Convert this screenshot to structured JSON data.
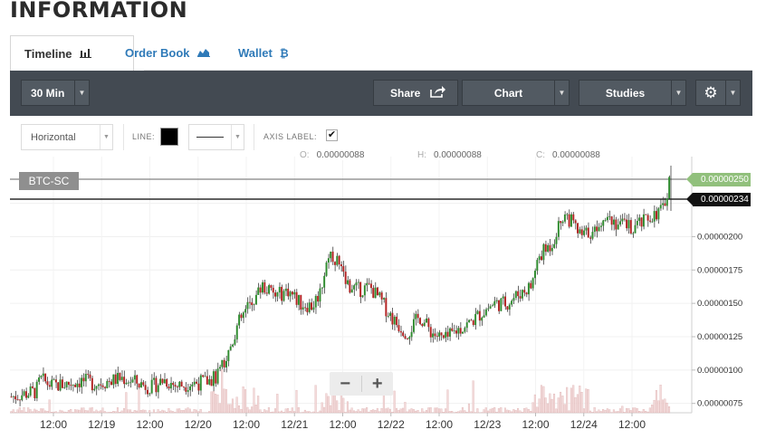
{
  "page": {
    "title": "INFORMATION"
  },
  "tabs": [
    {
      "label": "Timeline",
      "icon": "bar-chart-icon",
      "active": true
    },
    {
      "label": "Order Book",
      "icon": "area-chart-icon",
      "active": false
    },
    {
      "label": "Wallet",
      "icon": "bitcoin-icon",
      "active": false
    }
  ],
  "toolbar": {
    "interval": "30 Min",
    "share": "Share",
    "chart": "Chart",
    "studies": "Studies"
  },
  "drawing": {
    "tool": "Horizontal",
    "line_label": "LINE:",
    "line_color": "#000000",
    "axis_label": "AXIS LABEL:",
    "axis_label_checked": true
  },
  "ohlc": {
    "o_label": "O:",
    "o": "0.00000088",
    "h_label": "H:",
    "h": "0.00000088",
    "c_label": "C:",
    "c": "0.00000088"
  },
  "chart_data": {
    "type": "candlestick",
    "symbol": "BTC-SC",
    "current_price_label": "0.00000250",
    "horizontal_line_label": "0.00000234",
    "ylim": [
      6.8e-07,
      2.6e-06
    ],
    "y_ticks": [
      "0.00000225",
      "0.00000200",
      "0.00000175",
      "0.00000150",
      "0.00000125",
      "0.00000100",
      "0.00000075"
    ],
    "x_ticks": [
      "12:00",
      "12/19",
      "12:00",
      "12/20",
      "12:00",
      "12/21",
      "12:00",
      "12/22",
      "12:00",
      "12/23",
      "12:00",
      "12/24",
      "12:00"
    ],
    "price_path": [
      [
        0,
        8e-07
      ],
      [
        3,
        8.2e-07
      ],
      [
        6,
        8.4e-07
      ],
      [
        7,
        9.3e-07
      ],
      [
        10,
        8.8e-07
      ],
      [
        14,
        9e-07
      ],
      [
        17,
        9.2e-07
      ],
      [
        20,
        9e-07
      ],
      [
        24,
        9.2e-07
      ],
      [
        27,
        9.4e-07
      ],
      [
        30,
        9.1e-07
      ],
      [
        34,
        8.7e-07
      ],
      [
        37,
        9.3e-07
      ],
      [
        40,
        8.8e-07
      ],
      [
        43,
        9e-07
      ],
      [
        47,
        9.1e-07
      ],
      [
        50,
        9.5e-07
      ],
      [
        52,
        1.08e-06
      ],
      [
        55,
        1.35e-06
      ],
      [
        58,
        1.5e-06
      ],
      [
        61,
        1.63e-06
      ],
      [
        64,
        1.55e-06
      ],
      [
        67,
        1.6e-06
      ],
      [
        70,
        1.5e-06
      ],
      [
        73,
        1.48e-06
      ],
      [
        75,
        1.6e-06
      ],
      [
        77,
        1.89e-06
      ],
      [
        79,
        1.82e-06
      ],
      [
        81,
        1.65e-06
      ],
      [
        84,
        1.6e-06
      ],
      [
        87,
        1.62e-06
      ],
      [
        90,
        1.5e-06
      ],
      [
        93,
        1.36e-06
      ],
      [
        96,
        1.28e-06
      ],
      [
        99,
        1.4e-06
      ],
      [
        102,
        1.28e-06
      ],
      [
        105,
        1.22e-06
      ],
      [
        108,
        1.3e-06
      ],
      [
        111,
        1.35e-06
      ],
      [
        114,
        1.43e-06
      ],
      [
        117,
        1.5e-06
      ],
      [
        120,
        1.5e-06
      ],
      [
        123,
        1.57e-06
      ],
      [
        126,
        1.63e-06
      ],
      [
        128,
        1.85e-06
      ],
      [
        131,
        1.95e-06
      ],
      [
        134,
        2.18e-06
      ],
      [
        136,
        2.1e-06
      ],
      [
        138,
        2e-06
      ],
      [
        141,
        2.05e-06
      ],
      [
        144,
        2.18e-06
      ],
      [
        147,
        2.1e-06
      ],
      [
        150,
        2.07e-06
      ],
      [
        153,
        2.1e-06
      ],
      [
        156,
        2.18e-06
      ],
      [
        158,
        2.2e-06
      ],
      [
        160,
        2.5e-06
      ]
    ],
    "volume_profile": "low with spikes around 12/20 12:00, 12/21 and 12/23–12/24"
  }
}
